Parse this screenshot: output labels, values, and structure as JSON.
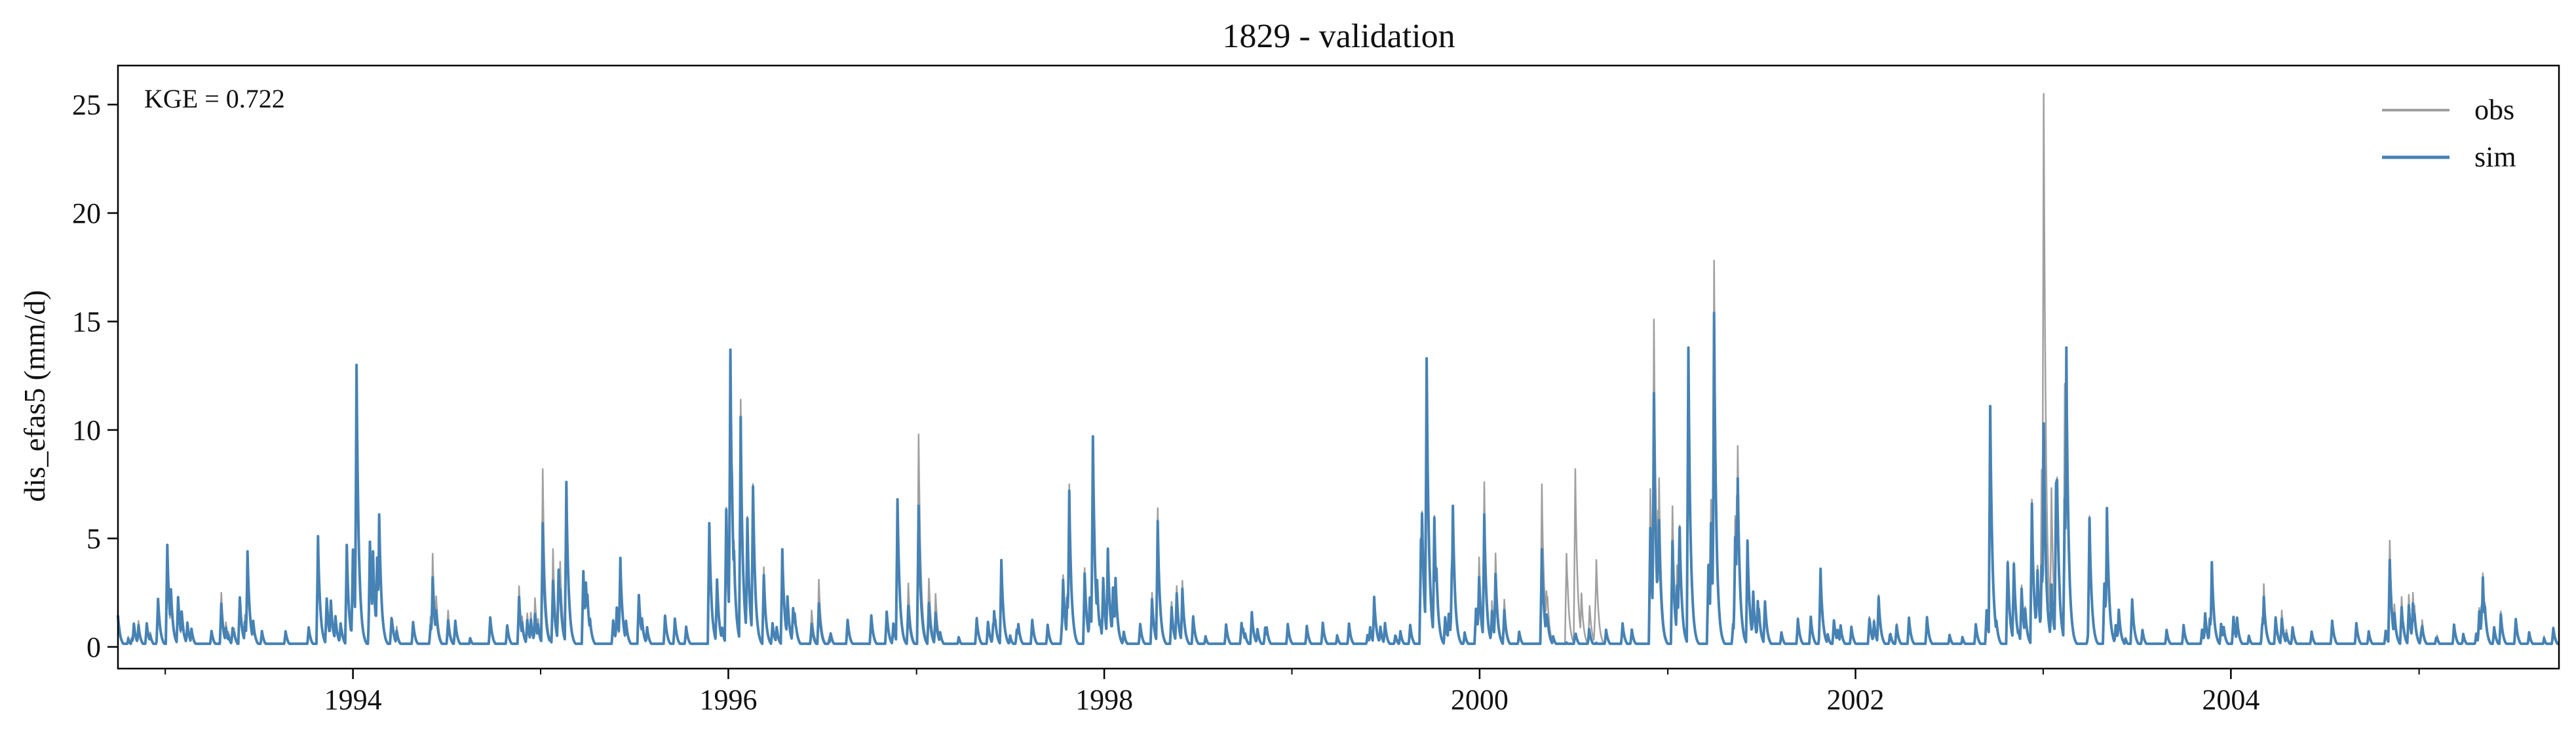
{
  "chart_data": {
    "type": "line",
    "title": "1829 - validation",
    "xlabel": "",
    "ylabel": "dis_efas5 (mm/d)",
    "annotation": "KGE = 0.722",
    "xlim": [
      "1992-10-01",
      "2005-09-30"
    ],
    "ylim": [
      -1,
      26.8
    ],
    "x_ticks": [
      "1994",
      "1996",
      "1998",
      "2000",
      "2002",
      "2004"
    ],
    "y_ticks": [
      "0",
      "5",
      "10",
      "15",
      "20",
      "25"
    ],
    "grid": false,
    "legend_position": "top-right",
    "series": [
      {
        "name": "obs",
        "color": "#a0a0a0",
        "peaks": [
          [
            "1992-11-10",
            1.2
          ],
          [
            "1993-01-05",
            4.0
          ],
          [
            "1993-04-20",
            2.5
          ],
          [
            "1993-06-10",
            4.3
          ],
          [
            "1993-10-25",
            4.9
          ],
          [
            "1993-12-20",
            4.5
          ],
          [
            "1994-01-08",
            12.6
          ],
          [
            "1994-02-20",
            4.1
          ],
          [
            "1994-06-05",
            4.3
          ],
          [
            "1994-11-20",
            2.8
          ],
          [
            "1995-01-05",
            8.2
          ],
          [
            "1995-02-20",
            7.4
          ],
          [
            "1995-06-05",
            3.6
          ],
          [
            "1995-11-25",
            5.4
          ],
          [
            "1996-01-05",
            13.5
          ],
          [
            "1996-01-25",
            11.4
          ],
          [
            "1996-04-15",
            4.3
          ],
          [
            "1996-06-25",
            3.1
          ],
          [
            "1996-11-25",
            6.2
          ],
          [
            "1997-01-05",
            9.8
          ],
          [
            "1997-06-15",
            3.7
          ],
          [
            "1997-10-25",
            7.5
          ],
          [
            "1997-12-10",
            9.5
          ],
          [
            "1998-04-15",
            6.4
          ],
          [
            "1998-10-15",
            1.4
          ],
          [
            "1999-06-10",
            2.3
          ],
          [
            "1999-09-20",
            13.1
          ],
          [
            "1999-11-10",
            6.2
          ],
          [
            "2000-01-10",
            7.6
          ],
          [
            "2000-05-01",
            7.5
          ],
          [
            "2000-07-05",
            8.2
          ],
          [
            "2000-12-05",
            15.1
          ],
          [
            "2001-02-10",
            13.6
          ],
          [
            "2001-04-01",
            17.8
          ],
          [
            "2001-06-05",
            4.8
          ],
          [
            "2001-10-25",
            3.5
          ],
          [
            "2002-02-15",
            2.4
          ],
          [
            "2002-09-20",
            11.0
          ],
          [
            "2002-12-10",
            6.8
          ],
          [
            "2003-01-02",
            25.5
          ],
          [
            "2003-02-15",
            13.6
          ],
          [
            "2003-05-05",
            6.3
          ],
          [
            "2003-11-25",
            3.6
          ],
          [
            "2004-03-05",
            2.9
          ],
          [
            "2004-11-05",
            4.9
          ],
          [
            "2004-12-20",
            2.5
          ],
          [
            "2005-05-05",
            3.4
          ],
          [
            "2005-09-01",
            0.5
          ]
        ]
      },
      {
        "name": "sim",
        "color": "#4682b4",
        "peaks": [
          [
            "1992-11-10",
            1.0
          ],
          [
            "1993-01-05",
            4.7
          ],
          [
            "1993-04-20",
            2.0
          ],
          [
            "1993-06-10",
            4.4
          ],
          [
            "1993-10-25",
            5.1
          ],
          [
            "1993-12-20",
            4.7
          ],
          [
            "1994-01-08",
            13.0
          ],
          [
            "1994-02-20",
            3.3
          ],
          [
            "1994-06-05",
            3.2
          ],
          [
            "1994-11-20",
            2.3
          ],
          [
            "1995-01-05",
            5.7
          ],
          [
            "1995-02-20",
            7.6
          ],
          [
            "1995-06-05",
            4.1
          ],
          [
            "1995-11-25",
            5.7
          ],
          [
            "1996-01-05",
            13.7
          ],
          [
            "1996-01-25",
            10.6
          ],
          [
            "1996-04-15",
            4.5
          ],
          [
            "1996-06-25",
            2.0
          ],
          [
            "1996-11-25",
            6.8
          ],
          [
            "1997-01-05",
            6.5
          ],
          [
            "1997-06-15",
            4.0
          ],
          [
            "1997-10-25",
            7.2
          ],
          [
            "1997-12-10",
            9.7
          ],
          [
            "1998-04-15",
            5.8
          ],
          [
            "1998-10-15",
            1.6
          ],
          [
            "1999-06-10",
            2.3
          ],
          [
            "1999-09-20",
            13.3
          ],
          [
            "1999-11-10",
            6.5
          ],
          [
            "2000-01-10",
            6.1
          ],
          [
            "2000-05-01",
            4.5
          ],
          [
            "2000-07-05",
            0.4
          ],
          [
            "2000-12-05",
            11.7
          ],
          [
            "2001-02-10",
            13.8
          ],
          [
            "2001-04-01",
            15.4
          ],
          [
            "2001-06-05",
            4.9
          ],
          [
            "2001-10-25",
            3.6
          ],
          [
            "2002-02-15",
            2.3
          ],
          [
            "2002-09-20",
            11.1
          ],
          [
            "2002-12-10",
            6.6
          ],
          [
            "2003-01-02",
            10.3
          ],
          [
            "2003-02-15",
            13.8
          ],
          [
            "2003-05-05",
            6.4
          ],
          [
            "2003-11-25",
            3.9
          ],
          [
            "2004-03-05",
            2.3
          ],
          [
            "2004-11-05",
            4.0
          ],
          [
            "2004-12-20",
            2.0
          ],
          [
            "2005-05-05",
            3.2
          ],
          [
            "2005-09-01",
            0.4
          ]
        ]
      }
    ]
  }
}
